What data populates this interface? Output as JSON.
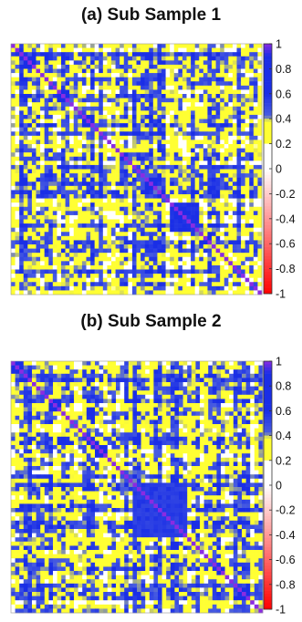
{
  "chart_data": [
    {
      "type": "heatmap",
      "title": "(a) Sub Sample 1",
      "colorbar": {
        "ticks": [
          "1",
          "0.8",
          "0.6",
          "0.4",
          "0.2",
          "0",
          "-0.2",
          "-0.4",
          "-0.6",
          "-0.8",
          "-1"
        ],
        "range": [
          -1,
          1
        ],
        "colors": {
          "neg1": "#ff0000",
          "zero": "#ffffff",
          "pos02": "#ffff33",
          "pos04": "#4a5ee0",
          "pos06": "#1a2ee6",
          "pos1": "#8a2be2"
        }
      },
      "values_description_blocks": [
        {
          "start": 0.04,
          "end": 0.09,
          "value": 0.75
        },
        {
          "start": 0.18,
          "end": 0.23,
          "value": 0.8
        },
        {
          "start": 0.27,
          "end": 0.33,
          "value": 0.8
        },
        {
          "start": 0.53,
          "end": 0.57,
          "value": 0.7
        },
        {
          "start": 0.62,
          "end": 0.74,
          "value": 0.6
        }
      ],
      "diagonal": 1,
      "grid": false,
      "legend": "right"
    },
    {
      "type": "heatmap",
      "title": "(b) Sub Sample 2",
      "colorbar": {
        "ticks": [
          "1",
          "0.8",
          "0.6",
          "0.4",
          "0.2",
          "0",
          "-0.2",
          "-0.4",
          "-0.6",
          "-0.8",
          "-1"
        ],
        "range": [
          -1,
          1
        ],
        "colors": {
          "neg1": "#ff0000",
          "zero": "#ffffff",
          "pos02": "#ffff33",
          "pos04": "#4a5ee0",
          "pos06": "#1a2ee6",
          "pos1": "#8a2be2"
        }
      },
      "values_description_blocks": [
        {
          "start": 0.0,
          "end": 0.05,
          "value": 0.75
        },
        {
          "start": 0.14,
          "end": 0.19,
          "value": 0.75
        },
        {
          "start": 0.33,
          "end": 0.38,
          "value": 0.8
        },
        {
          "start": 0.47,
          "end": 0.7,
          "value": 0.55
        },
        {
          "start": 0.9,
          "end": 0.94,
          "value": 0.8
        }
      ],
      "diagonal": 1,
      "grid": false,
      "legend": "right"
    }
  ]
}
